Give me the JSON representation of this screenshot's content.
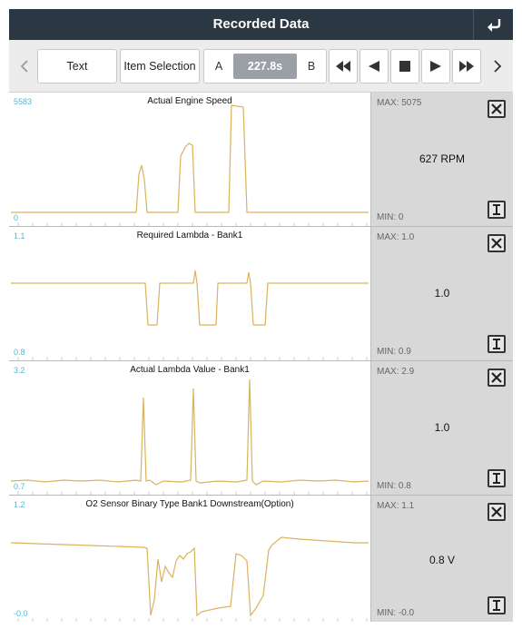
{
  "header": {
    "title": "Recorded Data"
  },
  "toolbar": {
    "text_label": "Text",
    "item_selection_label": "Item Selection",
    "a_label": "A",
    "b_label": "B",
    "time_value": "227.8s"
  },
  "line_color": "#d9b45a",
  "axis_label_color": "#4fb9d6",
  "panels": [
    {
      "title": "Actual Engine Speed",
      "ymax": "5583",
      "ymin": "0",
      "max": "MAX: 5075",
      "min": "MIN: 0",
      "value": "627 RPM"
    },
    {
      "title": "Required Lambda - Bank1",
      "ymax": "1.1",
      "ymin": "0.8",
      "max": "MAX: 1.0",
      "min": "MIN: 0.9",
      "value": "1.0"
    },
    {
      "title": "Actual Lambda Value - Bank1",
      "ymax": "3.2",
      "ymin": "0.7",
      "max": "MAX: 2.9",
      "min": "MIN: 0.8",
      "value": "1.0"
    },
    {
      "title": "O2 Sensor Binary Type Bank1 Downstream(Option)",
      "ymax": "1.2",
      "ymin": "-0.0",
      "max": "MAX: 1.1",
      "min": "MIN: -0.0",
      "value": "0.8 V"
    }
  ],
  "icons": {
    "back": "return-arrow-icon",
    "prev": "chevron-left-icon",
    "next": "chevron-right-icon",
    "rewind": "rewind-icon",
    "step_back": "step-back-icon",
    "stop": "stop-icon",
    "play": "play-icon",
    "fast_forward": "fast-forward-icon",
    "close": "close-icon",
    "scale": "scale-icon"
  }
}
